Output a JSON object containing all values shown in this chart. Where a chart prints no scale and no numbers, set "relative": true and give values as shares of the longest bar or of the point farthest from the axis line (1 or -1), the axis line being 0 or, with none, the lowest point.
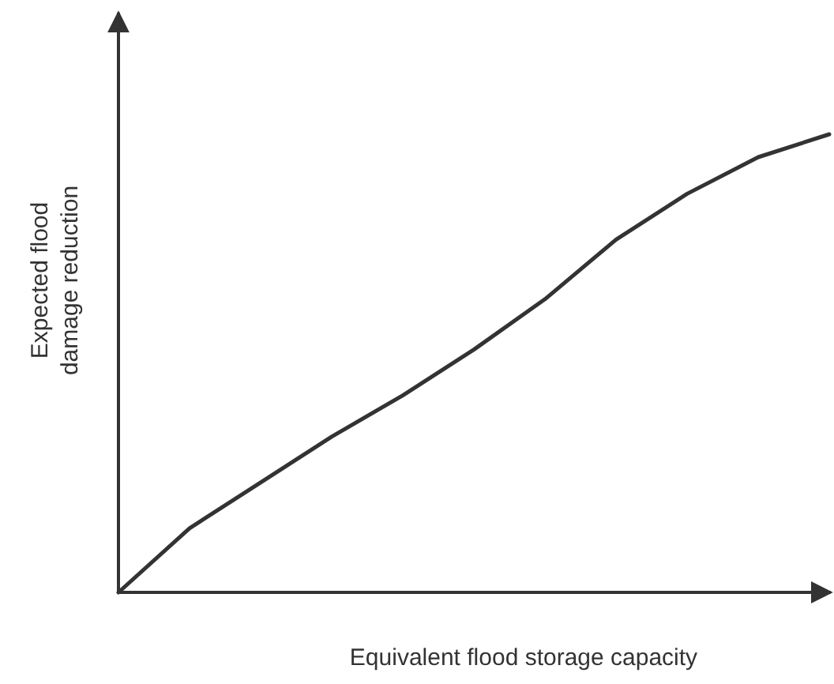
{
  "chart_data": {
    "type": "line",
    "relative": true,
    "xlabel": "Equivalent flood storage capacity",
    "ylabel": "Expected flood damage reduction",
    "categories": [
      null,
      null,
      null,
      null,
      null,
      null,
      null,
      null,
      null,
      null,
      null
    ],
    "series": [
      {
        "color": "#333333",
        "values": [
          0,
          0.14,
          0.24,
          0.34,
          0.43,
          0.53,
          0.64,
          0.77,
          0.87,
          0.95,
          1
        ]
      }
    ]
  }
}
